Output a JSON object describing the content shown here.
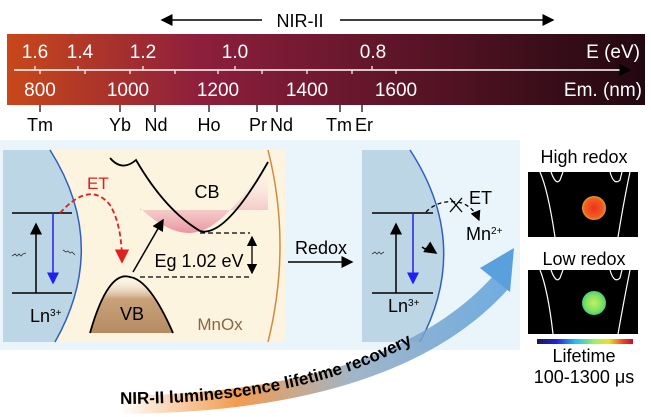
{
  "spectrum": {
    "region_label": "NIR-II",
    "energy_axis_label": "E (eV)",
    "energy_ticks": [
      "1.6",
      "1.4",
      "1.2",
      "1.0",
      "0.8"
    ],
    "emission_axis_label": "Em. (nm)",
    "emission_ticks": [
      "800",
      "1000",
      "1200",
      "1400",
      "1600"
    ],
    "elements": [
      "Tm",
      "Yb",
      "Nd",
      "Ho",
      "Pr",
      "Nd",
      "Tm",
      "Er"
    ],
    "gradient_colors": [
      "#c5461a",
      "#8e1f3c",
      "#2a0a10"
    ]
  },
  "left_panel": {
    "et_label": "ET",
    "ion_label": "Ln",
    "ion_charge": "3+",
    "cb_label": "CB",
    "vb_label": "VB",
    "bandgap_label": "Eg 1.02 eV",
    "material_label": "MnOx"
  },
  "redox_label": "Redox",
  "right_panel": {
    "et_label": "ET",
    "ion_label": "Ln",
    "ion_charge": "3+",
    "mn_label": "Mn",
    "mn_charge": "2+"
  },
  "recovery_label": "NIR-II luminescence lifetime recovery",
  "images": {
    "high_label": "High redox",
    "low_label": "Low redox",
    "colorbar_label": "Lifetime",
    "colorbar_range": "100-1300 μs"
  }
}
